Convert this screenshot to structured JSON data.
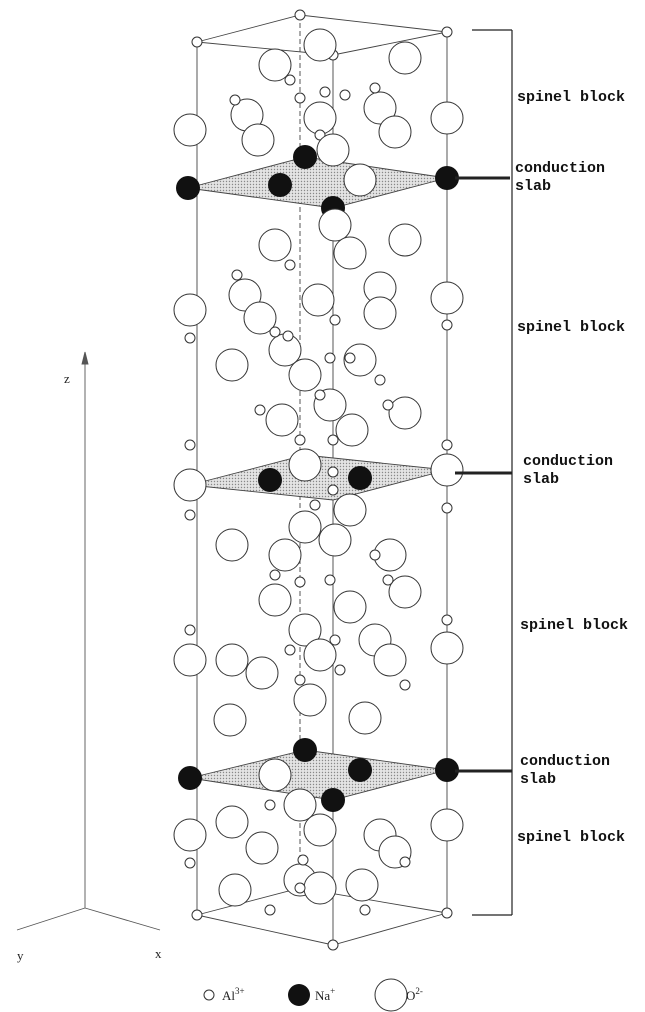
{
  "layers": [
    {
      "kind": "spinel",
      "text": "spinel block"
    },
    {
      "kind": "slab",
      "lines": [
        "conduction",
        "slab"
      ]
    },
    {
      "kind": "spinel",
      "text": "spinel block"
    },
    {
      "kind": "slab",
      "lines": [
        "conduction",
        "slab"
      ]
    },
    {
      "kind": "spinel",
      "text": "spinel block"
    },
    {
      "kind": "slab",
      "lines": [
        "conduction",
        "slab"
      ]
    },
    {
      "kind": "spinel",
      "text": "spinel block"
    }
  ],
  "axes": {
    "z": "z",
    "y": "y",
    "x": "x"
  },
  "legend": [
    {
      "symbol": "Al",
      "charge": "3+"
    },
    {
      "symbol": "Na",
      "charge": "+"
    },
    {
      "symbol": "O",
      "charge": "2-"
    }
  ]
}
